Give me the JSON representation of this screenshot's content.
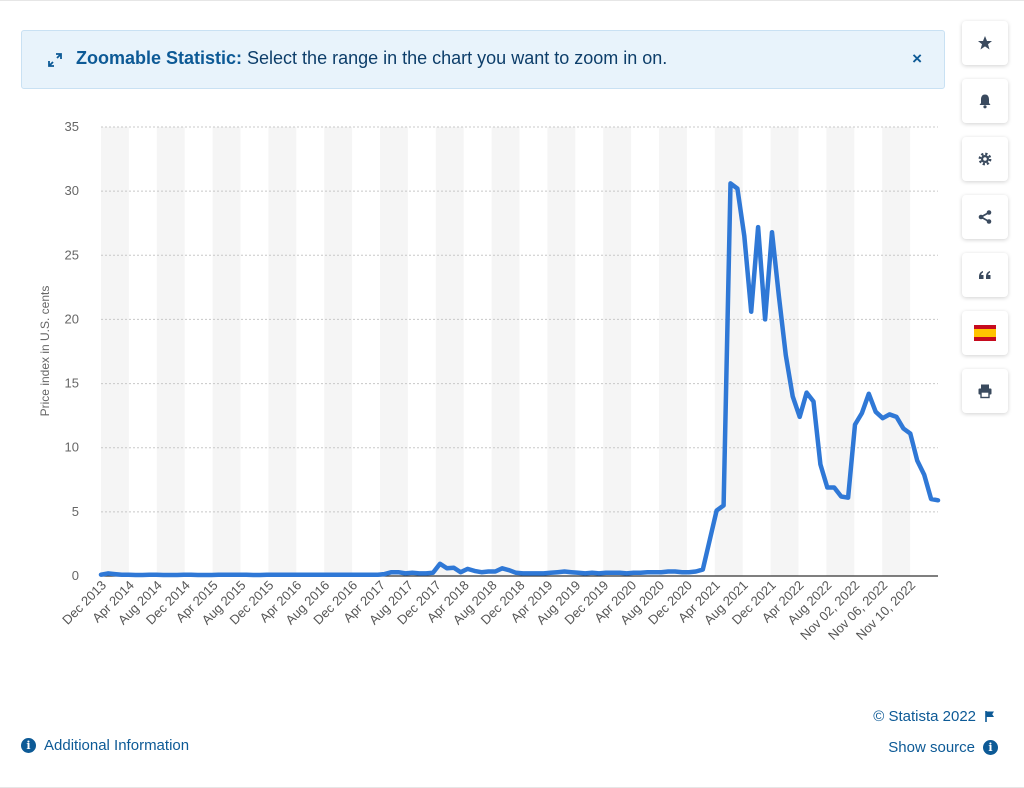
{
  "banner": {
    "label_bold": "Zoomable Statistic:",
    "label_rest": " Select the range in the chart you want to zoom in on.",
    "close_glyph": "×",
    "icon": "expand-arrows-icon"
  },
  "sidebar": {
    "buttons": [
      {
        "name": "favorite",
        "icon": "star-icon"
      },
      {
        "name": "notification",
        "icon": "bell-icon"
      },
      {
        "name": "settings",
        "icon": "gear-icon"
      },
      {
        "name": "share",
        "icon": "share-icon"
      },
      {
        "name": "cite",
        "icon": "quote-icon"
      },
      {
        "name": "language",
        "icon": "spain-flag-icon"
      },
      {
        "name": "print",
        "icon": "printer-icon"
      }
    ]
  },
  "footer": {
    "credit": "© Statista 2022",
    "additional_info": "Additional Information",
    "show_source": "Show source"
  },
  "colors": {
    "line": "#2f78d6",
    "accent": "#0d5a96",
    "banner_bg": "#e8f3fb"
  },
  "chart_data": {
    "type": "line",
    "title": "",
    "xlabel": "",
    "ylabel": "Price index in U.S. cents",
    "ylim": [
      0,
      35
    ],
    "yticks": [
      0,
      5,
      10,
      15,
      20,
      25,
      30,
      35
    ],
    "grid": true,
    "xtick_labels": [
      "Dec 2013",
      "Apr 2014",
      "Aug 2014",
      "Dec 2014",
      "Apr 2015",
      "Aug 2015",
      "Dec 2015",
      "Apr 2016",
      "Aug 2016",
      "Dec 2016",
      "Apr 2017",
      "Aug 2017",
      "Dec 2017",
      "Apr 2018",
      "Aug 2018",
      "Dec 2018",
      "Apr 2019",
      "Aug 2019",
      "Dec 2019",
      "Apr 2020",
      "Aug 2020",
      "Dec 2020",
      "Apr 2021",
      "Aug 2021",
      "Dec 2021",
      "Apr 2022",
      "Aug 2022",
      "Nov 02, 2022",
      "Nov 06, 2022",
      "Nov 10, 2022"
    ],
    "series": [
      {
        "name": "",
        "values": [
          0.1,
          0.2,
          0.15,
          0.1,
          0.1,
          0.08,
          0.08,
          0.1,
          0.1,
          0.08,
          0.08,
          0.08,
          0.1,
          0.1,
          0.08,
          0.08,
          0.08,
          0.1,
          0.1,
          0.1,
          0.1,
          0.1,
          0.08,
          0.08,
          0.1,
          0.1,
          0.1,
          0.1,
          0.1,
          0.1,
          0.1,
          0.1,
          0.1,
          0.1,
          0.1,
          0.1,
          0.1,
          0.1,
          0.1,
          0.1,
          0.1,
          0.15,
          0.3,
          0.3,
          0.2,
          0.25,
          0.2,
          0.2,
          0.25,
          0.95,
          0.6,
          0.65,
          0.3,
          0.55,
          0.4,
          0.3,
          0.35,
          0.35,
          0.6,
          0.45,
          0.25,
          0.2,
          0.2,
          0.2,
          0.2,
          0.25,
          0.3,
          0.35,
          0.3,
          0.25,
          0.2,
          0.25,
          0.2,
          0.25,
          0.25,
          0.25,
          0.2,
          0.25,
          0.25,
          0.3,
          0.3,
          0.3,
          0.35,
          0.35,
          0.3,
          0.3,
          0.35,
          0.5,
          2.8,
          5.1,
          5.5,
          30.6,
          30.2,
          26.5,
          20.6,
          27.2,
          20.0,
          26.8,
          21.8,
          17.2,
          14.0,
          12.4,
          14.3,
          13.6,
          8.7,
          6.9,
          6.9,
          6.2,
          6.1,
          11.8,
          12.7,
          14.2,
          12.8,
          12.3,
          12.6,
          12.4,
          11.5,
          11.1,
          9.0,
          7.9,
          6.0,
          5.9
        ]
      }
    ]
  }
}
